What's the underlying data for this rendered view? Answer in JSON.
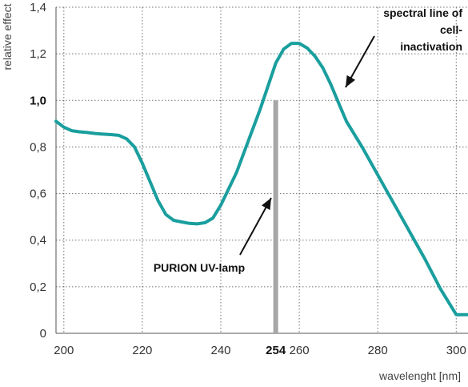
{
  "chart_data": {
    "type": "line",
    "xlabel": "wavelenght [nm]",
    "ylabel": "relative effect",
    "xlim": [
      198,
      303
    ],
    "ylim": [
      0,
      1.4
    ],
    "x_ticks": [
      {
        "value": 200,
        "label": "200",
        "emphasis": false
      },
      {
        "value": 220,
        "label": "220",
        "emphasis": false
      },
      {
        "value": 240,
        "label": "240",
        "emphasis": false
      },
      {
        "value": 254,
        "label": "254",
        "emphasis": true
      },
      {
        "value": 260,
        "label": "260",
        "emphasis": false
      },
      {
        "value": 280,
        "label": "280",
        "emphasis": false
      },
      {
        "value": 300,
        "label": "300",
        "emphasis": false
      }
    ],
    "y_ticks": [
      {
        "value": 0,
        "label": "0",
        "emphasis": false
      },
      {
        "value": 0.2,
        "label": "0,2",
        "emphasis": false
      },
      {
        "value": 0.4,
        "label": "0,4",
        "emphasis": false
      },
      {
        "value": 0.6,
        "label": "0,6",
        "emphasis": false
      },
      {
        "value": 0.8,
        "label": "0,8",
        "emphasis": false
      },
      {
        "value": 1.0,
        "label": "1,0",
        "emphasis": true
      },
      {
        "value": 1.2,
        "label": "1,2",
        "emphasis": false
      },
      {
        "value": 1.4,
        "label": "1,4",
        "emphasis": false
      }
    ],
    "grid": true,
    "series": [
      {
        "color": "#1a9e9e",
        "x": [
          198,
          200,
          202,
          204,
          206,
          208,
          210,
          212,
          214,
          216,
          218,
          220,
          222,
          224,
          226,
          228,
          230,
          232,
          234,
          236,
          238,
          240,
          242,
          244,
          246,
          248,
          250,
          252,
          254,
          256,
          258,
          260,
          262,
          264,
          266,
          268,
          270,
          272,
          276,
          280,
          284,
          288,
          292,
          296,
          300,
          303
        ],
        "y": [
          0.91,
          0.885,
          0.87,
          0.865,
          0.862,
          0.858,
          0.855,
          0.853,
          0.85,
          0.835,
          0.8,
          0.73,
          0.65,
          0.57,
          0.51,
          0.485,
          0.478,
          0.472,
          0.47,
          0.475,
          0.495,
          0.55,
          0.62,
          0.69,
          0.78,
          0.87,
          0.96,
          1.06,
          1.16,
          1.22,
          1.245,
          1.245,
          1.225,
          1.19,
          1.14,
          1.07,
          0.99,
          0.91,
          0.8,
          0.68,
          0.56,
          0.44,
          0.32,
          0.19,
          0.08,
          0.08
        ]
      }
    ],
    "reference_line": {
      "x": 254,
      "y": 1.0,
      "color": "#a6a6a6"
    },
    "annotations": [
      {
        "id": "lamp",
        "text": [
          "PURION UV-lamp"
        ]
      },
      {
        "id": "spectral",
        "text": [
          "spectral line of",
          "cell-",
          "inactivation"
        ]
      }
    ]
  }
}
